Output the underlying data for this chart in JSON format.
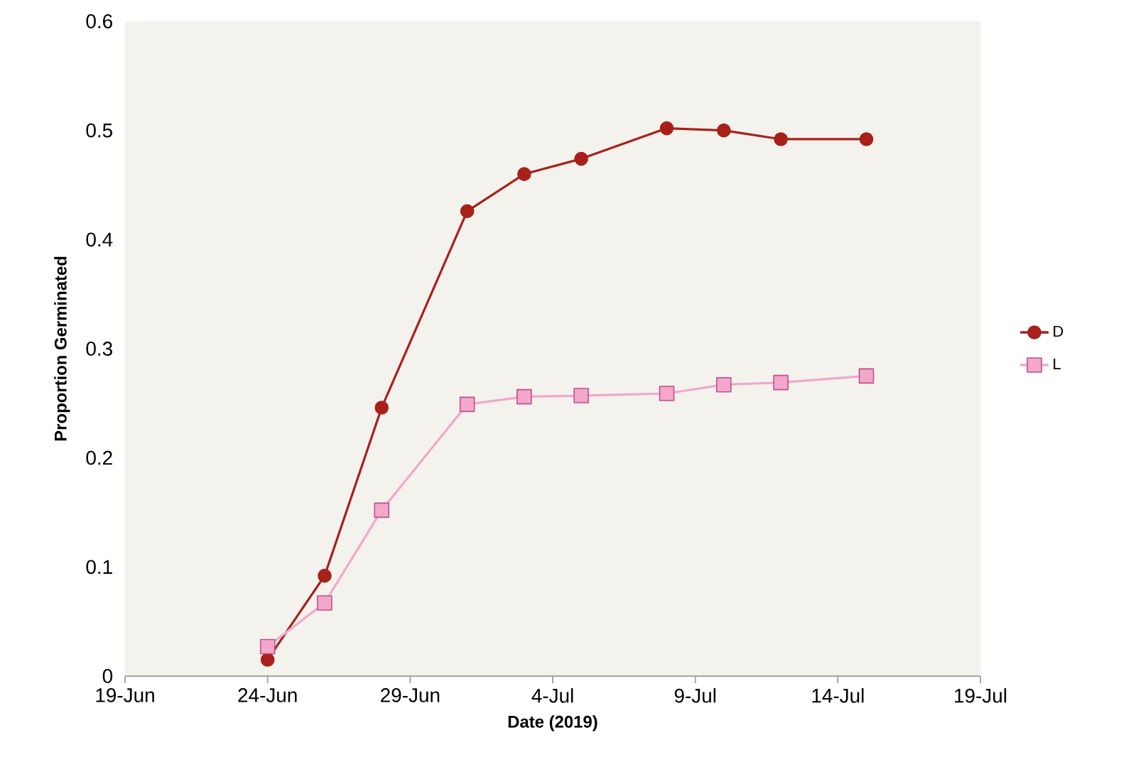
{
  "chart_data": {
    "type": "line",
    "xlabel": "Date (2019)",
    "ylabel": "Proportion Germinated",
    "x": [
      "2019-06-24",
      "2019-06-26",
      "2019-06-28",
      "2019-07-01",
      "2019-07-03",
      "2019-07-05",
      "2019-07-08",
      "2019-07-10",
      "2019-07-12",
      "2019-07-15"
    ],
    "series": [
      {
        "name": "D",
        "color": "#a8201a",
        "marker": "circle",
        "values": [
          0.015,
          0.092,
          0.246,
          0.426,
          0.46,
          0.474,
          0.502,
          0.5,
          0.492,
          0.492
        ]
      },
      {
        "name": "L",
        "color": "#f2a7cb",
        "marker": "square",
        "values": [
          0.027,
          0.067,
          0.152,
          0.249,
          0.256,
          0.257,
          0.259,
          0.267,
          0.269,
          0.275
        ]
      }
    ],
    "xlim": [
      "2019-06-19",
      "2019-07-19"
    ],
    "xticks": [
      {
        "value": "2019-06-19",
        "label": "19-Jun"
      },
      {
        "value": "2019-06-24",
        "label": "24-Jun"
      },
      {
        "value": "2019-06-29",
        "label": "29-Jun"
      },
      {
        "value": "2019-07-04",
        "label": "4-Jul"
      },
      {
        "value": "2019-07-09",
        "label": "9-Jul"
      },
      {
        "value": "2019-07-14",
        "label": "14-Jul"
      },
      {
        "value": "2019-07-19",
        "label": "19-Jul"
      }
    ],
    "ylim": [
      0,
      0.6
    ],
    "yticks": [
      0,
      0.1,
      0.2,
      0.3,
      0.4,
      0.5,
      0.6
    ],
    "legend": "right"
  }
}
